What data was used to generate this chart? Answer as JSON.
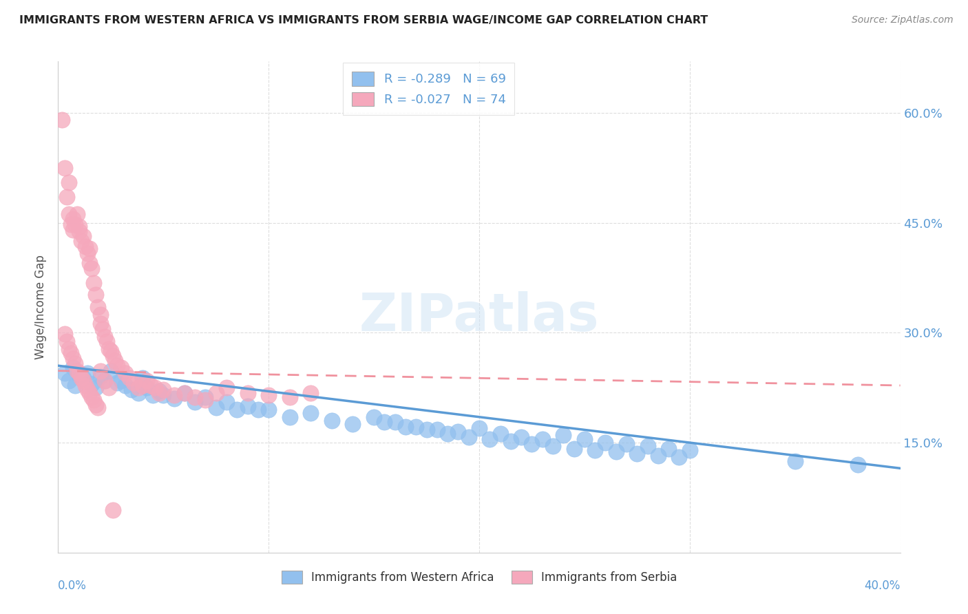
{
  "title": "IMMIGRANTS FROM WESTERN AFRICA VS IMMIGRANTS FROM SERBIA WAGE/INCOME GAP CORRELATION CHART",
  "source": "Source: ZipAtlas.com",
  "ylabel": "Wage/Income Gap",
  "y_ticks": [
    0.15,
    0.3,
    0.45,
    0.6
  ],
  "y_tick_labels": [
    "15.0%",
    "30.0%",
    "45.0%",
    "60.0%"
  ],
  "xlim": [
    0.0,
    0.4
  ],
  "ylim": [
    0.0,
    0.67
  ],
  "watermark": "ZIPatlas",
  "bottom_legend_blue": "Immigrants from Western Africa",
  "bottom_legend_pink": "Immigrants from Serbia",
  "blue_color": "#92C0EE",
  "pink_color": "#F5A8BC",
  "blue_line_color": "#5B9BD5",
  "pink_line_color": "#F0929E",
  "R_blue": -0.289,
  "N_blue": 69,
  "R_pink": -0.027,
  "N_pink": 74,
  "grid_color": "#DDDDDD",
  "background_color": "#FFFFFF",
  "title_color": "#222222",
  "axis_label_color": "#5B9BD5",
  "right_tick_color": "#5B9BD5",
  "blue_trend_x0": 0.0,
  "blue_trend_y0": 0.255,
  "blue_trend_x1": 0.4,
  "blue_trend_y1": 0.115,
  "pink_trend_x0": 0.0,
  "pink_trend_y0": 0.248,
  "pink_trend_x1": 0.4,
  "pink_trend_y1": 0.228,
  "blue_x": [
    0.003,
    0.005,
    0.007,
    0.008,
    0.01,
    0.012,
    0.014,
    0.016,
    0.018,
    0.02,
    0.022,
    0.025,
    0.028,
    0.03,
    0.032,
    0.035,
    0.038,
    0.04,
    0.042,
    0.045,
    0.048,
    0.05,
    0.055,
    0.06,
    0.065,
    0.07,
    0.075,
    0.08,
    0.085,
    0.09,
    0.095,
    0.1,
    0.11,
    0.12,
    0.13,
    0.14,
    0.15,
    0.16,
    0.17,
    0.18,
    0.19,
    0.2,
    0.21,
    0.22,
    0.23,
    0.24,
    0.25,
    0.26,
    0.27,
    0.28,
    0.29,
    0.3,
    0.155,
    0.165,
    0.175,
    0.185,
    0.195,
    0.205,
    0.215,
    0.225,
    0.235,
    0.245,
    0.255,
    0.265,
    0.275,
    0.285,
    0.295,
    0.35,
    0.38
  ],
  "blue_y": [
    0.245,
    0.235,
    0.252,
    0.228,
    0.242,
    0.238,
    0.245,
    0.23,
    0.225,
    0.24,
    0.235,
    0.248,
    0.232,
    0.235,
    0.228,
    0.222,
    0.218,
    0.238,
    0.225,
    0.215,
    0.22,
    0.215,
    0.21,
    0.218,
    0.205,
    0.212,
    0.198,
    0.205,
    0.195,
    0.2,
    0.195,
    0.195,
    0.185,
    0.19,
    0.18,
    0.175,
    0.185,
    0.178,
    0.172,
    0.168,
    0.165,
    0.17,
    0.162,
    0.158,
    0.155,
    0.16,
    0.155,
    0.15,
    0.148,
    0.145,
    0.142,
    0.14,
    0.178,
    0.172,
    0.168,
    0.162,
    0.158,
    0.155,
    0.152,
    0.148,
    0.145,
    0.142,
    0.14,
    0.138,
    0.135,
    0.132,
    0.13,
    0.125,
    0.12
  ],
  "pink_x": [
    0.002,
    0.003,
    0.004,
    0.005,
    0.005,
    0.006,
    0.007,
    0.007,
    0.008,
    0.009,
    0.01,
    0.01,
    0.011,
    0.012,
    0.013,
    0.014,
    0.015,
    0.015,
    0.016,
    0.017,
    0.018,
    0.019,
    0.02,
    0.02,
    0.021,
    0.022,
    0.023,
    0.024,
    0.025,
    0.026,
    0.027,
    0.028,
    0.03,
    0.032,
    0.034,
    0.036,
    0.038,
    0.04,
    0.042,
    0.044,
    0.046,
    0.048,
    0.05,
    0.055,
    0.06,
    0.065,
    0.07,
    0.075,
    0.08,
    0.09,
    0.1,
    0.11,
    0.12,
    0.003,
    0.004,
    0.005,
    0.006,
    0.007,
    0.008,
    0.009,
    0.01,
    0.011,
    0.012,
    0.013,
    0.014,
    0.015,
    0.016,
    0.017,
    0.018,
    0.019,
    0.02,
    0.022,
    0.024,
    0.026
  ],
  "pink_y": [
    0.59,
    0.525,
    0.485,
    0.505,
    0.462,
    0.448,
    0.455,
    0.44,
    0.448,
    0.462,
    0.445,
    0.438,
    0.425,
    0.432,
    0.418,
    0.408,
    0.415,
    0.395,
    0.388,
    0.368,
    0.352,
    0.335,
    0.325,
    0.312,
    0.305,
    0.295,
    0.288,
    0.278,
    0.275,
    0.268,
    0.262,
    0.255,
    0.252,
    0.245,
    0.238,
    0.232,
    0.225,
    0.228,
    0.235,
    0.228,
    0.225,
    0.218,
    0.222,
    0.215,
    0.218,
    0.212,
    0.208,
    0.218,
    0.225,
    0.218,
    0.215,
    0.212,
    0.218,
    0.298,
    0.288,
    0.278,
    0.272,
    0.265,
    0.258,
    0.248,
    0.245,
    0.238,
    0.235,
    0.228,
    0.222,
    0.218,
    0.212,
    0.208,
    0.202,
    0.198,
    0.248,
    0.235,
    0.225,
    0.058
  ]
}
